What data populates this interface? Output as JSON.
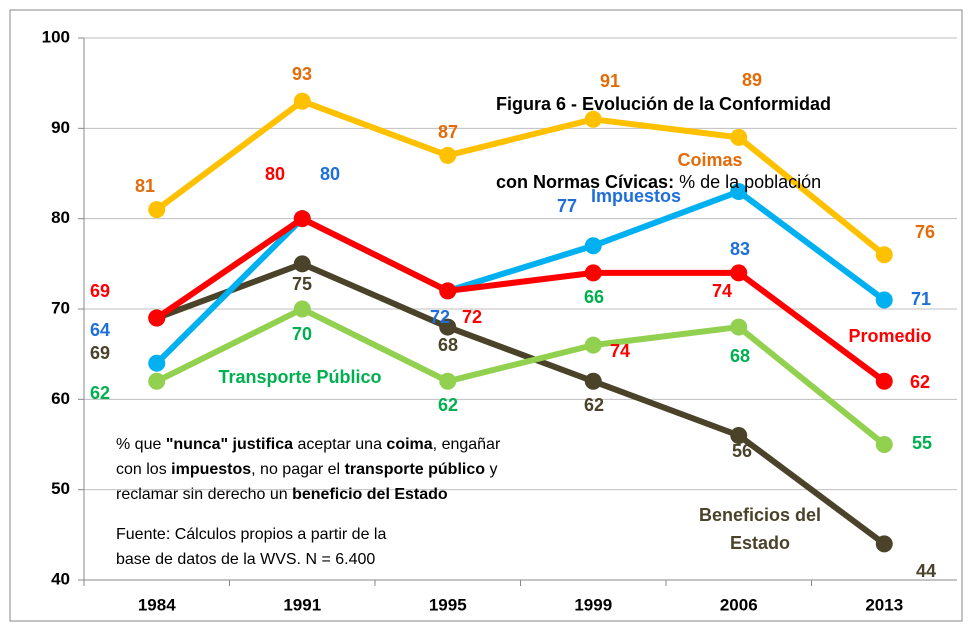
{
  "chart_data": {
    "type": "line",
    "title": [
      "Figura 6 - Evolución de la Conformidad",
      "con Normas Cívicas:"
    ],
    "subtitle": " % de la población",
    "categories": [
      "1984",
      "1991",
      "1995",
      "1999",
      "2006",
      "2013"
    ],
    "series": [
      {
        "name": "Coimas",
        "color": "#FFC000",
        "label_color": "#E36C09",
        "values": [
          81,
          93,
          87,
          91,
          89,
          76
        ]
      },
      {
        "name": "Impuestos",
        "color": "#00B0F0",
        "label_color": "#1F6FDB",
        "values": [
          64,
          80,
          72,
          77,
          83,
          71
        ]
      },
      {
        "name": "Promedio",
        "color": "#FF0000",
        "label_color": "#FF0000",
        "values": [
          69,
          80,
          72,
          74,
          74,
          62
        ]
      },
      {
        "name": "Transporte Público",
        "color": "#92D050",
        "label_color": "#00B050",
        "values": [
          62,
          70,
          62,
          66,
          68,
          55
        ]
      },
      {
        "name": "Beneficios del Estado",
        "color": "#4A4229",
        "label_color": "#4A4229",
        "values": [
          69,
          75,
          68,
          62,
          56,
          44
        ]
      }
    ],
    "ylim": [
      40,
      100
    ],
    "yticks": [
      40,
      50,
      60,
      70,
      80,
      90,
      100
    ],
    "grid": true,
    "annotation": [
      [
        "% que ",
        "\"nunca\" justifica",
        " aceptar una ",
        "coima",
        ", engañar"
      ],
      [
        "con los ",
        "impuestos",
        ", no pagar el ",
        "transporte público",
        " y"
      ],
      [
        "reclamar sin derecho un ",
        "beneficio del Estado"
      ]
    ],
    "source": [
      "Fuente: Cálculos propios a partir de la",
      "base de datos de la WVS. N = 6.400"
    ]
  }
}
